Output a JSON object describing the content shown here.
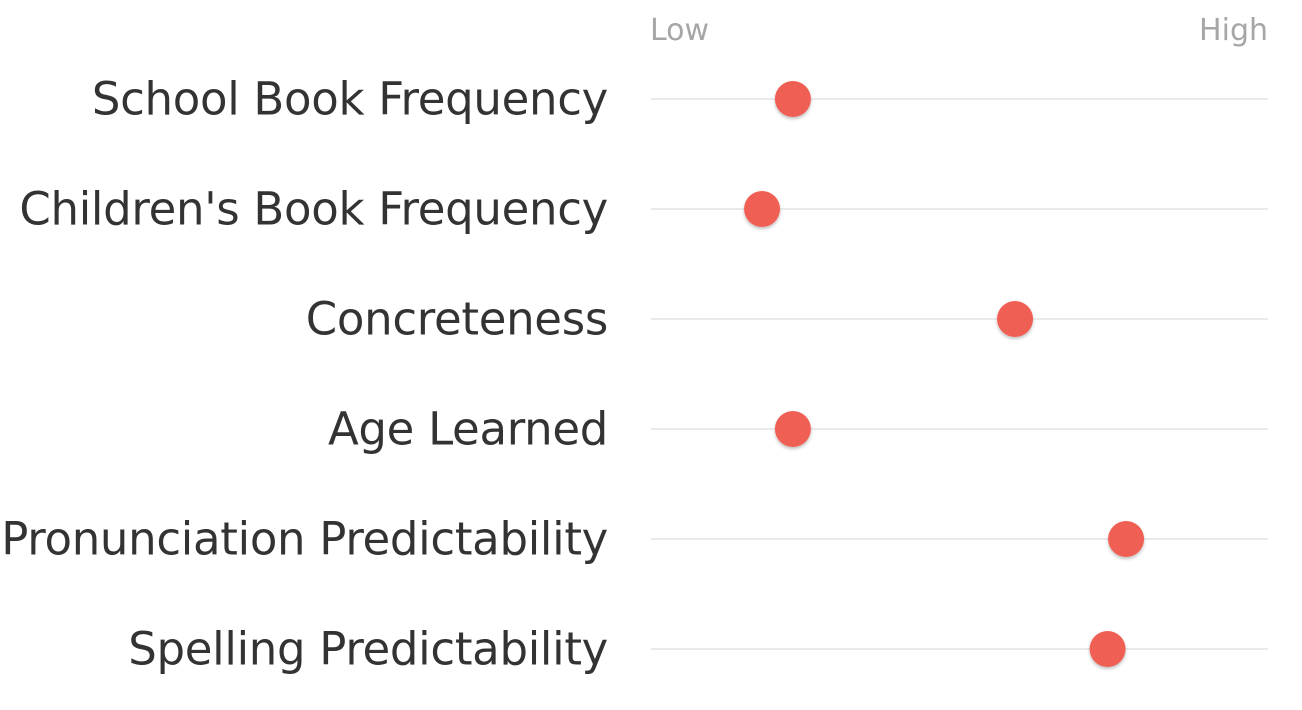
{
  "chart_data": {
    "type": "scatter",
    "scale_labels": {
      "low": "Low",
      "high": "High"
    },
    "xlim": [
      0,
      1
    ],
    "categories": [
      "School Book Frequency",
      "Children's Book Frequency",
      "Concreteness",
      "Age Learned",
      "Pronunciation Predictability",
      "Spelling Predictability"
    ],
    "values": [
      0.23,
      0.18,
      0.59,
      0.23,
      0.77,
      0.74
    ],
    "marker_color": "#f05e52",
    "track_color": "#d6d6d6"
  }
}
